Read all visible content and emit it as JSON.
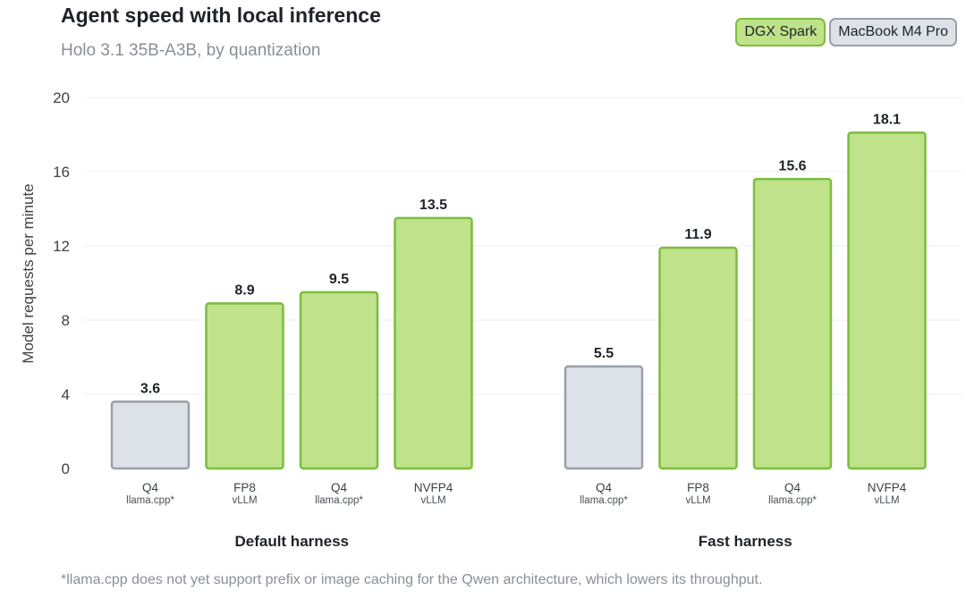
{
  "header": {
    "title": "Agent speed with local inference",
    "subtitle": "Holo 3.1 35B-A3B, by quantization"
  },
  "legend": {
    "items": [
      {
        "label": "DGX Spark",
        "color": "#bfe28a",
        "border": "#7cbd3e"
      },
      {
        "label": "MacBook M4 Pro",
        "color": "#dde1e8",
        "border": "#9aa0a8"
      }
    ]
  },
  "footnote": "*llama.cpp does not yet support prefix or image caching for the Qwen architecture, which lowers its throughput.",
  "chart_data": {
    "type": "bar",
    "title": "Agent speed with local inference",
    "subtitle": "Holo 3.1 35B-A3B, by quantization",
    "ylabel": "Model requests per minute",
    "ylim": [
      0,
      20
    ],
    "yticks": [
      0,
      4,
      8,
      12,
      16,
      20
    ],
    "grid": true,
    "legend_position": "top-right",
    "groups": [
      {
        "label": "Default harness",
        "bars": [
          {
            "quant": "Q4",
            "engine": "llama.cpp*",
            "device": "MacBook M4 Pro",
            "value": 3.6,
            "label": "3.6"
          },
          {
            "quant": "FP8",
            "engine": "vLLM",
            "device": "DGX Spark",
            "value": 8.9,
            "label": "8.9"
          },
          {
            "quant": "Q4",
            "engine": "llama.cpp*",
            "device": "DGX Spark",
            "value": 9.5,
            "label": "9.5"
          },
          {
            "quant": "NVFP4",
            "engine": "vLLM",
            "device": "DGX Spark",
            "value": 13.5,
            "label": "13.5"
          }
        ]
      },
      {
        "label": "Fast harness",
        "bars": [
          {
            "quant": "Q4",
            "engine": "llama.cpp*",
            "device": "MacBook M4 Pro",
            "value": 5.5,
            "label": "5.5"
          },
          {
            "quant": "FP8",
            "engine": "vLLM",
            "device": "DGX Spark",
            "value": 11.9,
            "label": "11.9"
          },
          {
            "quant": "Q4",
            "engine": "llama.cpp*",
            "device": "DGX Spark",
            "value": 15.6,
            "label": "15.6"
          },
          {
            "quant": "NVFP4",
            "engine": "vLLM",
            "device": "DGX Spark",
            "value": 18.1,
            "label": "18.1"
          }
        ]
      }
    ]
  }
}
